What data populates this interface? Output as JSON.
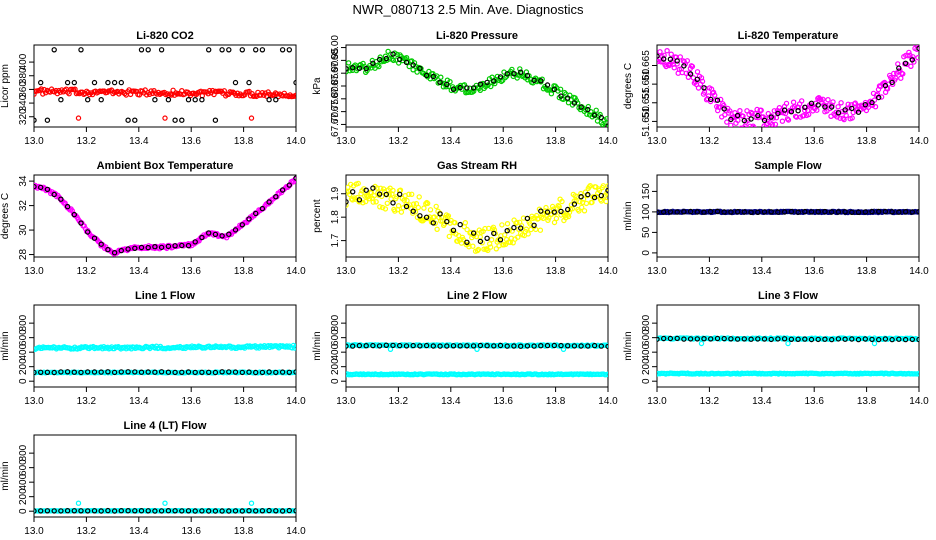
{
  "title": "NWR_080713  2.5 Min. Ave. Diagnostics",
  "chart_data": [
    {
      "type": "scatter",
      "title": "Li-820 CO2",
      "ylabel": "Licor ppm",
      "xlim": [
        13.0,
        14.0
      ],
      "ylim": [
        305,
        425
      ],
      "xticks": [
        "13.0",
        "13.2",
        "13.4",
        "13.6",
        "13.8",
        "14.0"
      ],
      "yticks": [
        "320",
        "340",
        "360",
        "380",
        "400"
      ],
      "series": [
        {
          "color": "#ff0000",
          "kind": "band",
          "start": 357,
          "end": 353,
          "spread": 4,
          "noise": 1.0,
          "n": 180,
          "outliers": [
            [
              13.17,
              318
            ],
            [
              13.5,
              318
            ],
            [
              13.83,
              318
            ]
          ]
        },
        {
          "color": "#000000",
          "kind": "levels",
          "levels": [
            315,
            345,
            370,
            418
          ],
          "n": 40,
          "outliers": []
        }
      ]
    },
    {
      "type": "scatter",
      "title": "Li-820 Pressure",
      "ylabel": "kPa",
      "xlim": [
        13.0,
        14.0
      ],
      "ylim": [
        67.69,
        68.01
      ],
      "xticks": [
        "13.0",
        "13.2",
        "13.4",
        "13.6",
        "13.8",
        "14.0"
      ],
      "yticks": [
        "67.70",
        "67.75",
        "67.80",
        "67.85",
        "67.90",
        "67.95",
        "68.00"
      ],
      "series": [
        {
          "color": "#00cc00",
          "kind": "curve",
          "knots": [
            [
              13.0,
              67.925
            ],
            [
              13.08,
              67.92
            ],
            [
              13.12,
              67.94
            ],
            [
              13.17,
              67.975
            ],
            [
              13.25,
              67.935
            ],
            [
              13.32,
              67.885
            ],
            [
              13.42,
              67.84
            ],
            [
              13.5,
              67.845
            ],
            [
              13.56,
              67.87
            ],
            [
              13.62,
              67.9
            ],
            [
              13.67,
              67.9
            ],
            [
              13.75,
              67.86
            ],
            [
              13.85,
              67.8
            ],
            [
              13.95,
              67.74
            ],
            [
              14.0,
              67.7
            ]
          ],
          "spread": 0.02,
          "noise": 0.5,
          "n": 200,
          "outliers": []
        },
        {
          "color": "#000000",
          "kind": "curve",
          "knots": [
            [
              13.0,
              67.925
            ],
            [
              13.08,
              67.92
            ],
            [
              13.12,
              67.94
            ],
            [
              13.17,
              67.975
            ],
            [
              13.25,
              67.935
            ],
            [
              13.32,
              67.885
            ],
            [
              13.42,
              67.84
            ],
            [
              13.5,
              67.845
            ],
            [
              13.56,
              67.87
            ],
            [
              13.62,
              67.9
            ],
            [
              13.67,
              67.9
            ],
            [
              13.75,
              67.86
            ],
            [
              13.85,
              67.8
            ],
            [
              13.95,
              67.74
            ],
            [
              14.0,
              67.7
            ]
          ],
          "spread": 0.008,
          "noise": 0.5,
          "n": 40,
          "outliers": []
        }
      ]
    },
    {
      "type": "scatter",
      "title": "Li-820 Temperature",
      "ylabel": "degrees C",
      "xlim": [
        13.0,
        14.0
      ],
      "ylim": [
        51.6485,
        51.6705
      ],
      "xticks": [
        "13.0",
        "13.2",
        "13.4",
        "13.6",
        "13.8",
        "14.0"
      ],
      "yticks": [
        "51.650",
        "51.655",
        "51.660",
        "51.665"
      ],
      "series": [
        {
          "color": "#ff00ff",
          "kind": "curve",
          "knots": [
            [
              13.0,
              51.6685
            ],
            [
              13.05,
              51.6665
            ],
            [
              13.12,
              51.664
            ],
            [
              13.2,
              51.657
            ],
            [
              13.28,
              51.651
            ],
            [
              13.33,
              51.6505
            ],
            [
              13.42,
              51.651
            ],
            [
              13.5,
              51.6525
            ],
            [
              13.6,
              51.6545
            ],
            [
              13.67,
              51.6535
            ],
            [
              13.75,
              51.6525
            ],
            [
              13.82,
              51.655
            ],
            [
              13.9,
              51.6615
            ],
            [
              14.0,
              51.6695
            ]
          ],
          "spread": 0.0025,
          "noise": 0.5,
          "n": 260,
          "outliers": []
        },
        {
          "color": "#000000",
          "kind": "curve",
          "knots": [
            [
              13.0,
              51.6685
            ],
            [
              13.05,
              51.6665
            ],
            [
              13.12,
              51.664
            ],
            [
              13.2,
              51.657
            ],
            [
              13.28,
              51.651
            ],
            [
              13.33,
              51.6505
            ],
            [
              13.42,
              51.651
            ],
            [
              13.5,
              51.6525
            ],
            [
              13.6,
              51.6545
            ],
            [
              13.67,
              51.6535
            ],
            [
              13.75,
              51.6525
            ],
            [
              13.82,
              51.655
            ],
            [
              13.9,
              51.6615
            ],
            [
              14.0,
              51.6695
            ]
          ],
          "spread": 0.001,
          "noise": 0.5,
          "n": 40,
          "outliers": []
        }
      ]
    },
    {
      "type": "scatter",
      "title": "Ambient Box Temperature",
      "ylabel": "degrees C",
      "xlim": [
        13.0,
        14.0
      ],
      "ylim": [
        27.8,
        34.5
      ],
      "xticks": [
        "13.0",
        "13.2",
        "13.4",
        "13.6",
        "13.8",
        "14.0"
      ],
      "yticks": [
        "28",
        "30",
        "32",
        "34"
      ],
      "series": [
        {
          "color": "#ff00ff",
          "kind": "curve",
          "knots": [
            [
              13.0,
              33.6
            ],
            [
              13.05,
              33.3
            ],
            [
              13.1,
              32.6
            ],
            [
              13.15,
              31.4
            ],
            [
              13.2,
              30.0
            ],
            [
              13.25,
              28.9
            ],
            [
              13.3,
              28.1
            ],
            [
              13.35,
              28.4
            ],
            [
              13.4,
              28.6
            ],
            [
              13.5,
              28.6
            ],
            [
              13.6,
              28.8
            ],
            [
              13.67,
              29.8
            ],
            [
              13.73,
              29.4
            ],
            [
              13.8,
              30.5
            ],
            [
              13.9,
              32.3
            ],
            [
              14.0,
              34.2
            ]
          ],
          "spread": 0.12,
          "noise": 0.5,
          "n": 220,
          "outliers": []
        },
        {
          "color": "#000000",
          "kind": "curve",
          "knots": [
            [
              13.0,
              33.6
            ],
            [
              13.05,
              33.3
            ],
            [
              13.1,
              32.6
            ],
            [
              13.15,
              31.4
            ],
            [
              13.2,
              30.0
            ],
            [
              13.25,
              28.9
            ],
            [
              13.3,
              28.1
            ],
            [
              13.35,
              28.4
            ],
            [
              13.4,
              28.6
            ],
            [
              13.5,
              28.6
            ],
            [
              13.6,
              28.8
            ],
            [
              13.67,
              29.8
            ],
            [
              13.73,
              29.4
            ],
            [
              13.8,
              30.5
            ],
            [
              13.9,
              32.3
            ],
            [
              14.0,
              34.2
            ]
          ],
          "spread": 0.05,
          "noise": 0.5,
          "n": 40,
          "outliers": []
        }
      ]
    },
    {
      "type": "scatter",
      "title": "Gas Stream RH",
      "ylabel": "percent",
      "xlim": [
        13.0,
        14.0
      ],
      "ylim": [
        1.63,
        1.98
      ],
      "xticks": [
        "13.0",
        "13.2",
        "13.4",
        "13.6",
        "13.8",
        "14.0"
      ],
      "yticks": [
        "1.7",
        "1.8",
        "1.9"
      ],
      "series": [
        {
          "color": "#ffff00",
          "kind": "curve",
          "knots": [
            [
              13.0,
              1.9
            ],
            [
              13.1,
              1.89
            ],
            [
              13.2,
              1.87
            ],
            [
              13.3,
              1.83
            ],
            [
              13.4,
              1.76
            ],
            [
              13.5,
              1.7
            ],
            [
              13.6,
              1.72
            ],
            [
              13.7,
              1.77
            ],
            [
              13.8,
              1.82
            ],
            [
              13.9,
              1.87
            ],
            [
              14.0,
              1.92
            ]
          ],
          "spread": 0.05,
          "noise": 0.5,
          "n": 280,
          "outliers": []
        },
        {
          "color": "#000000",
          "kind": "curve",
          "knots": [
            [
              13.0,
              1.9
            ],
            [
              13.1,
              1.89
            ],
            [
              13.2,
              1.87
            ],
            [
              13.3,
              1.83
            ],
            [
              13.4,
              1.76
            ],
            [
              13.5,
              1.7
            ],
            [
              13.6,
              1.72
            ],
            [
              13.7,
              1.77
            ],
            [
              13.8,
              1.82
            ],
            [
              13.9,
              1.87
            ],
            [
              14.0,
              1.92
            ]
          ],
          "spread": 0.035,
          "noise": 0.5,
          "n": 40,
          "outliers": []
        }
      ]
    },
    {
      "type": "scatter",
      "title": "Sample Flow",
      "ylabel": "ml/min",
      "xlim": [
        13.0,
        14.0
      ],
      "ylim": [
        -10,
        190
      ],
      "xticks": [
        "13.0",
        "13.2",
        "13.4",
        "13.6",
        "13.8",
        "14.0"
      ],
      "yticks": [
        "0",
        "50",
        "100",
        "150"
      ],
      "series": [
        {
          "color": "#000080",
          "kind": "band",
          "start": 100,
          "end": 100,
          "spread": 1.5,
          "noise": 1.0,
          "n": 200,
          "outliers": []
        },
        {
          "color": "#000000",
          "kind": "band",
          "start": 100,
          "end": 100,
          "spread": 1.0,
          "noise": 1.0,
          "n": 40,
          "outliers": []
        }
      ]
    },
    {
      "type": "scatter",
      "title": "Line 1 Flow",
      "ylabel": "ml/min",
      "xlim": [
        13.0,
        14.0
      ],
      "ylim": [
        -80,
        1050
      ],
      "xticks": [
        "13.0",
        "13.2",
        "13.4",
        "13.6",
        "13.8",
        "14.0"
      ],
      "yticks": [
        "0",
        "200",
        "400",
        "600",
        "800"
      ],
      "series": [
        {
          "color": "#00ffff",
          "kind": "band",
          "start": 455,
          "end": 475,
          "spread": 18,
          "noise": 1.0,
          "n": 200,
          "outliers": []
        },
        {
          "color": "#00ffff",
          "kind": "band",
          "start": 120,
          "end": 120,
          "spread": 5,
          "noise": 1.0,
          "n": 160,
          "outliers": []
        },
        {
          "color": "#000000",
          "kind": "band",
          "start": 125,
          "end": 125,
          "spread": 5,
          "noise": 1.0,
          "n": 40,
          "outliers": []
        }
      ]
    },
    {
      "type": "scatter",
      "title": "Line 2 Flow",
      "ylabel": "ml/min",
      "xlim": [
        13.0,
        14.0
      ],
      "ylim": [
        -80,
        1050
      ],
      "xticks": [
        "13.0",
        "13.2",
        "13.4",
        "13.6",
        "13.8",
        "14.0"
      ],
      "yticks": [
        "0",
        "200",
        "400",
        "600",
        "800"
      ],
      "series": [
        {
          "color": "#00ffff",
          "kind": "band",
          "start": 495,
          "end": 490,
          "spread": 8,
          "noise": 1.0,
          "n": 180,
          "outliers": [
            [
              13.17,
              440
            ],
            [
              13.5,
              440
            ],
            [
              13.83,
              440
            ]
          ]
        },
        {
          "color": "#00ffff",
          "kind": "band",
          "start": 95,
          "end": 95,
          "spread": 6,
          "noise": 1.0,
          "n": 180,
          "outliers": []
        },
        {
          "color": "#000000",
          "kind": "band",
          "start": 490,
          "end": 485,
          "spread": 6,
          "noise": 1.0,
          "n": 40,
          "outliers": []
        }
      ]
    },
    {
      "type": "scatter",
      "title": "Line 3 Flow",
      "ylabel": "ml/min",
      "xlim": [
        13.0,
        14.0
      ],
      "ylim": [
        -80,
        1050
      ],
      "xticks": [
        "13.0",
        "13.2",
        "13.4",
        "13.6",
        "13.8",
        "14.0"
      ],
      "yticks": [
        "0",
        "200",
        "400",
        "600",
        "800"
      ],
      "series": [
        {
          "color": "#00ffff",
          "kind": "band",
          "start": 590,
          "end": 585,
          "spread": 8,
          "noise": 1.0,
          "n": 160,
          "outliers": [
            [
              13.17,
              520
            ],
            [
              13.5,
              520
            ],
            [
              13.83,
              520
            ]
          ]
        },
        {
          "color": "#00ffff",
          "kind": "band",
          "start": 105,
          "end": 105,
          "spread": 6,
          "noise": 1.0,
          "n": 180,
          "outliers": []
        },
        {
          "color": "#000000",
          "kind": "band",
          "start": 585,
          "end": 575,
          "spread": 6,
          "noise": 1.0,
          "n": 40,
          "outliers": []
        }
      ]
    },
    {
      "type": "scatter",
      "title": "Line 4 (LT) Flow",
      "ylabel": "ml/min",
      "xlim": [
        13.0,
        14.0
      ],
      "ylim": [
        -80,
        1050
      ],
      "xticks": [
        "13.0",
        "13.2",
        "13.4",
        "13.6",
        "13.8",
        "14.0"
      ],
      "yticks": [
        "0",
        "200",
        "400",
        "600",
        "800"
      ],
      "series": [
        {
          "color": "#00ffff",
          "kind": "band",
          "start": 5,
          "end": 5,
          "spread": 3,
          "noise": 1.0,
          "n": 160,
          "outliers": [
            [
              13.17,
              110
            ],
            [
              13.5,
              110
            ],
            [
              13.83,
              110
            ]
          ]
        },
        {
          "color": "#000000",
          "kind": "band",
          "start": 5,
          "end": 5,
          "spread": 3,
          "noise": 1.0,
          "n": 40,
          "outliers": []
        }
      ]
    }
  ]
}
